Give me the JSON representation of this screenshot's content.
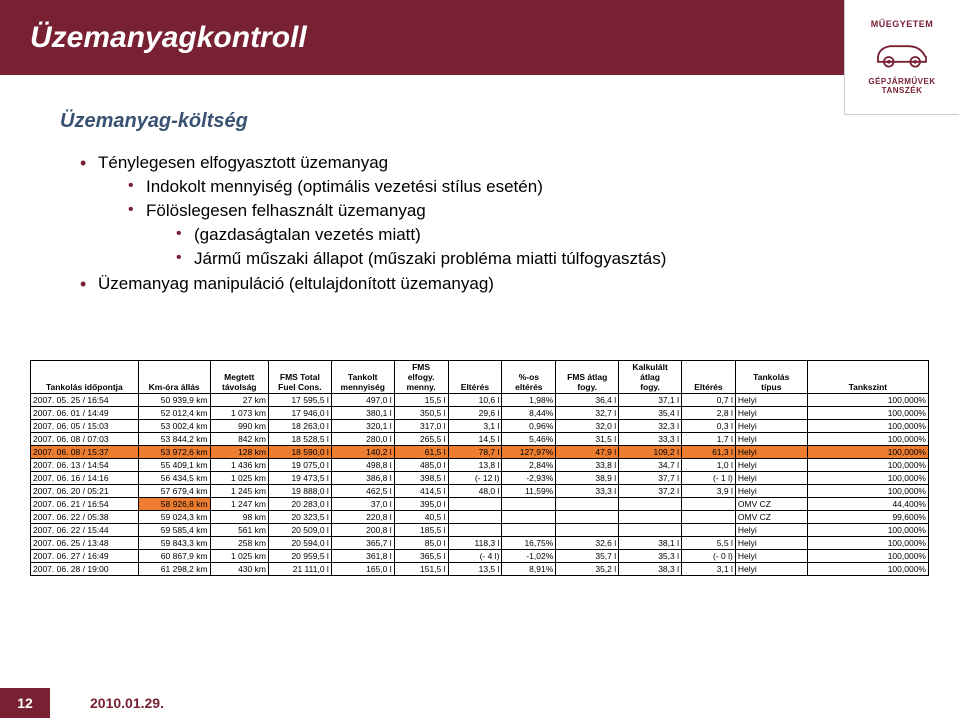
{
  "header": {
    "title": "Üzemanyagkontroll"
  },
  "branding": {
    "uni": "MŰEGYETEM",
    "dept": "GÉPJÁRMŰVEK TANSZÉK"
  },
  "subtitle": "Üzemanyag-költség",
  "bullets": {
    "b1": "Ténylegesen elfogyasztott üzemanyag",
    "b1a": "Indokolt mennyiség (optimális vezetési stílus esetén)",
    "b1b": "Fölöslegesen felhasznált üzemanyag",
    "b1b1": "(gazdaságtalan vezetés miatt)",
    "b1b2": "Jármű műszaki állapot (műszaki probléma miatti túlfogyasztás)",
    "b2": "Üzemanyag manipuláció (eltulajdonított üzemanyag)"
  },
  "table": {
    "colwidths": [
      "11%",
      "7%",
      "5.5%",
      "6%",
      "6.5%",
      "5.5%",
      "5.5%",
      "5.5%",
      "5.5%",
      "6%",
      "5.5%",
      "5.5%",
      "5.5%",
      "6.5%",
      "7.5%"
    ],
    "headers": [
      "Tankolás időpontja",
      "Km-óra állás",
      "Megtett távolság",
      "FMS Total Fuel Cons.",
      "Tankolt mennyiség",
      "FMS elfogy. menny.",
      "Eltérés",
      "%-os eltérés",
      "FMS átlag fogy.",
      "Kalkulált átlag fogy.",
      "Eltérés",
      "",
      "Tankolás típus",
      "",
      "Tankszint"
    ],
    "header_merge_note": "12 columns before typus span; simplified",
    "rows": [
      {
        "c": [
          "2007. 05. 25 / 16:54",
          "50 939,9 km",
          "27 km",
          "17 595,5 l",
          "497,0 l",
          "15,5 l",
          "10,6 l",
          "1,98%",
          "36,4 l",
          "37,1 l",
          "0,7 l",
          "Helyi",
          "100,000%"
        ],
        "hl": ""
      },
      {
        "c": [
          "2007. 06. 01 / 14:49",
          "52 012,4 km",
          "1 073 km",
          "17 946,0 l",
          "380,1 l",
          "350,5 l",
          "29,6 l",
          "8,44%",
          "32,7 l",
          "35,4 l",
          "2,8 l",
          "Helyi",
          "100,000%"
        ],
        "hl": ""
      },
      {
        "c": [
          "2007. 06. 05 / 15:03",
          "53 002,4 km",
          "990 km",
          "18 263,0 l",
          "320,1 l",
          "317,0 l",
          "3,1 l",
          "0,96%",
          "32,0 l",
          "32,3 l",
          "0,3 l",
          "Helyi",
          "100,000%"
        ],
        "hl": ""
      },
      {
        "c": [
          "2007. 06. 08 / 07:03",
          "53 844,2 km",
          "842 km",
          "18 528,5 l",
          "280,0 l",
          "265,5 l",
          "14,5 l",
          "5,46%",
          "31,5 l",
          "33,3 l",
          "1,7 l",
          "Helyi",
          "100,000%"
        ],
        "hl": ""
      },
      {
        "c": [
          "2007. 06. 08 / 15:37",
          "53 972,6 km",
          "128 km",
          "18 590,0 l",
          "140,2 l",
          "61,5 l",
          "78,7 l",
          "127,97%",
          "47,9 l",
          "109,2 l",
          "61,3 l",
          "Helyi",
          "100,000%"
        ],
        "hl": "row"
      },
      {
        "c": [
          "2007. 06. 13 / 14:54",
          "55 409,1 km",
          "1 436 km",
          "19 075,0 l",
          "498,8 l",
          "485,0 l",
          "13,8 l",
          "2,84%",
          "33,8 l",
          "34,7 l",
          "1,0 l",
          "Helyi",
          "100,000%"
        ],
        "hl": ""
      },
      {
        "c": [
          "2007. 06. 16 / 14:16",
          "56 434,5 km",
          "1 025 km",
          "19 473,5 l",
          "386,8 l",
          "398,5 l",
          "(- 12 l)",
          "-2,93%",
          "38,9 l",
          "37,7 l",
          "(- 1 l)",
          "Helyi",
          "100,000%"
        ],
        "hl": ""
      },
      {
        "c": [
          "2007. 06. 20 / 05:21",
          "57 679,4 km",
          "1 245 km",
          "19 888,0 l",
          "462,5 l",
          "414,5 l",
          "48,0 l",
          "11,59%",
          "33,3 l",
          "37,2 l",
          "3,9 l",
          "Helyi",
          "100,000%"
        ],
        "hl": ""
      },
      {
        "c": [
          "2007. 06. 21 / 16:54",
          "58 926,8 km",
          "1 247 km",
          "20 283,0 l",
          "37,0 l",
          "395,0 l",
          "",
          "",
          "",
          "",
          "",
          "OMV CZ",
          "44,400%"
        ],
        "hl": "cell1"
      },
      {
        "c": [
          "2007. 06. 22 / 05:38",
          "59 024,3 km",
          "98 km",
          "20 323,5 l",
          "220,8 l",
          "40,5 l",
          "",
          "",
          "",
          "",
          "",
          "OMV CZ",
          "99,600%"
        ],
        "hl": ""
      },
      {
        "c": [
          "2007. 06. 22 / 15:44",
          "59 585,4 km",
          "561 km",
          "20 509,0 l",
          "200,8 l",
          "185,5 l",
          "",
          "",
          "",
          "",
          "",
          "Helyi",
          "100,000%"
        ],
        "hl": ""
      },
      {
        "c": [
          "2007. 06. 25 / 13:48",
          "59 843,3 km",
          "258 km",
          "20 594,0 l",
          "365,7 l",
          "85,0 l",
          "118,3 l",
          "16,75%",
          "32,6 l",
          "38,1 l",
          "5,5 l",
          "Helyi",
          "100,000%"
        ],
        "hl": ""
      },
      {
        "c": [
          "2007. 06. 27 / 16:49",
          "60 867,9 km",
          "1 025 km",
          "20 959,5 l",
          "361,8 l",
          "365,5 l",
          "(- 4 l)",
          "-1,02%",
          "35,7 l",
          "35,3 l",
          "(- 0 l)",
          "Helyi",
          "100,000%"
        ],
        "hl": ""
      },
      {
        "c": [
          "2007. 06. 28 / 19:00",
          "61 298,2 km",
          "430 km",
          "21 111,0 l",
          "165,0 l",
          "151,5 l",
          "13,5 l",
          "8,91%",
          "35,2 l",
          "38,3 l",
          "3,1 l",
          "Helyi",
          "100,000%"
        ],
        "hl": ""
      }
    ]
  },
  "footer": {
    "page": "12",
    "date": "2010.01.29."
  },
  "colors": {
    "banner": "#782133",
    "subtitle": "#3a5272",
    "highlight": "#ed7d31"
  }
}
